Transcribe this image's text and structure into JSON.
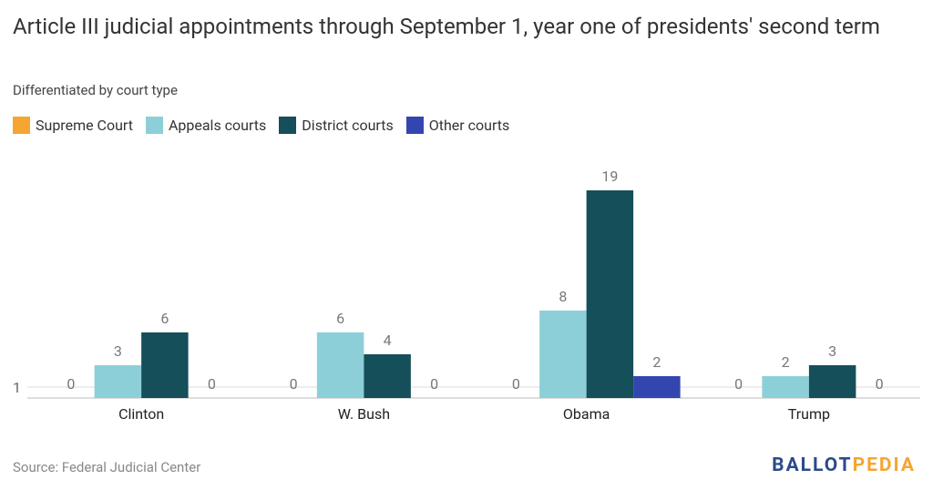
{
  "chart_data": {
    "type": "bar",
    "title": "Article III judicial appointments through September 1, year one of presidents' second term",
    "subtitle": "Differentiated by court type",
    "categories": [
      "Clinton",
      "W. Bush",
      "Obama",
      "Trump"
    ],
    "series": [
      {
        "name": "Supreme Court",
        "color": "#f5a531",
        "values": [
          0,
          0,
          0,
          0
        ]
      },
      {
        "name": "Appeals courts",
        "color": "#8dcfd8",
        "values": [
          3,
          6,
          8,
          2
        ]
      },
      {
        "name": "District courts",
        "color": "#144f5a",
        "values": [
          6,
          4,
          19,
          3
        ]
      },
      {
        "name": "Other courts",
        "color": "#3346b0",
        "values": [
          0,
          0,
          2,
          0
        ]
      }
    ],
    "ylim": [
      0,
      20
    ],
    "yticks": [
      1
    ],
    "grid": true,
    "source": "Source: Federal Judicial Center",
    "brand": {
      "first": "BALLOT",
      "second": "PEDIA"
    }
  }
}
